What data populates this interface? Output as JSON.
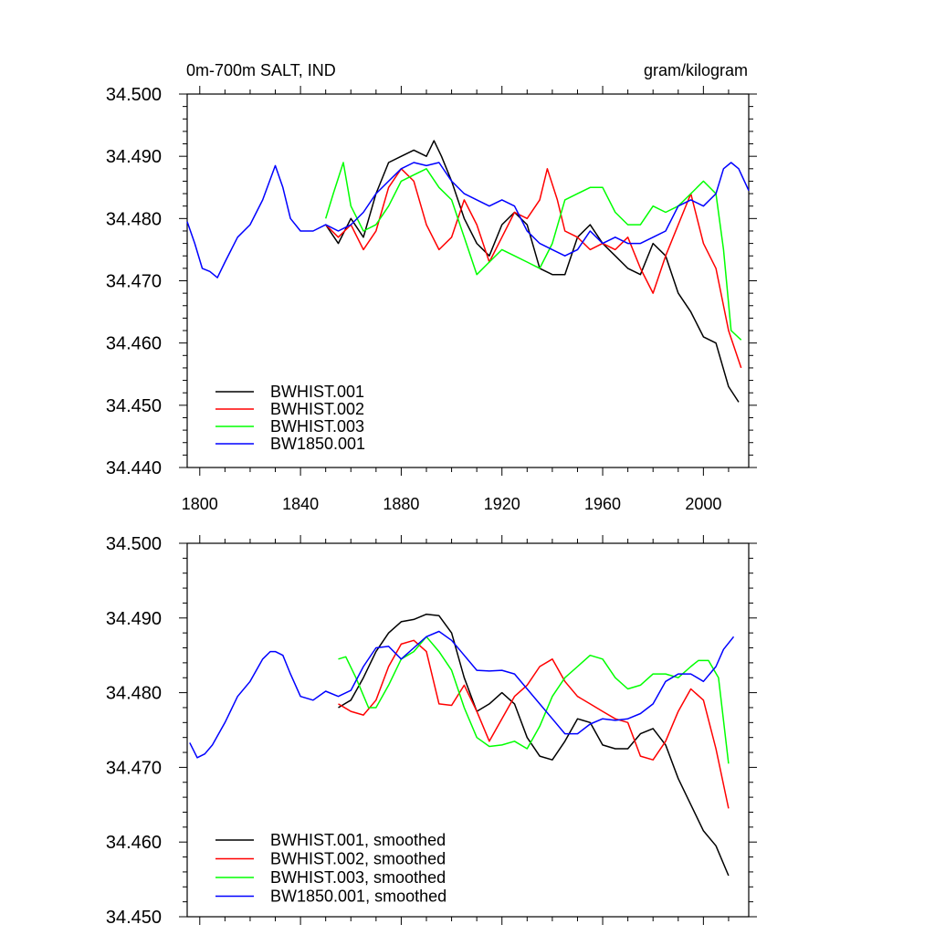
{
  "chart_data": [
    {
      "type": "line",
      "title_left": "0m-700m SALT, IND",
      "title_right": "gram/kilogram",
      "xlim": [
        1795,
        2018
      ],
      "ylim": [
        34.44,
        34.5
      ],
      "xticks": [
        1800,
        1840,
        1880,
        1920,
        1960,
        2000
      ],
      "yticks": [
        34.44,
        34.45,
        34.46,
        34.47,
        34.48,
        34.49,
        34.5
      ],
      "ytick_labels": [
        "34.440",
        "34.450",
        "34.460",
        "34.470",
        "34.480",
        "34.490",
        "34.500"
      ],
      "legend_position": "bottom-left",
      "series": [
        {
          "name": "BWHIST.001",
          "color": "#000000",
          "x": [
            1850,
            1855,
            1860,
            1865,
            1870,
            1875,
            1880,
            1885,
            1890,
            1893,
            1896,
            1900,
            1905,
            1910,
            1915,
            1920,
            1925,
            1930,
            1935,
            1940,
            1945,
            1950,
            1955,
            1960,
            1965,
            1970,
            1975,
            1980,
            1985,
            1990,
            1995,
            2000,
            2005,
            2010,
            2014
          ],
          "y": [
            34.479,
            34.476,
            34.48,
            34.477,
            34.484,
            34.489,
            34.49,
            34.491,
            34.49,
            34.4925,
            34.49,
            34.486,
            34.48,
            34.476,
            34.474,
            34.479,
            34.481,
            34.479,
            34.472,
            34.471,
            34.471,
            34.477,
            34.479,
            34.476,
            34.474,
            34.472,
            34.471,
            34.476,
            34.474,
            34.468,
            34.465,
            34.461,
            34.46,
            34.453,
            34.4505
          ]
        },
        {
          "name": "BWHIST.002",
          "color": "#ff0000",
          "x": [
            1850,
            1855,
            1860,
            1865,
            1870,
            1875,
            1880,
            1885,
            1890,
            1895,
            1900,
            1905,
            1910,
            1915,
            1920,
            1925,
            1930,
            1935,
            1938,
            1942,
            1945,
            1950,
            1955,
            1960,
            1965,
            1970,
            1975,
            1980,
            1985,
            1990,
            1995,
            2000,
            2005,
            2010,
            2015
          ],
          "y": [
            34.479,
            34.477,
            34.479,
            34.475,
            34.478,
            34.485,
            34.488,
            34.486,
            34.479,
            34.475,
            34.477,
            34.483,
            34.479,
            34.473,
            34.477,
            34.481,
            34.48,
            34.483,
            34.488,
            34.483,
            34.478,
            34.477,
            34.475,
            34.476,
            34.475,
            34.477,
            34.472,
            34.468,
            34.474,
            34.479,
            34.484,
            34.476,
            34.472,
            34.462,
            34.456
          ]
        },
        {
          "name": "BWHIST.003",
          "color": "#00ff00",
          "x": [
            1850,
            1853,
            1857,
            1860,
            1865,
            1870,
            1875,
            1880,
            1885,
            1890,
            1895,
            1900,
            1905,
            1910,
            1915,
            1920,
            1925,
            1930,
            1935,
            1940,
            1945,
            1950,
            1955,
            1960,
            1965,
            1970,
            1975,
            1980,
            1985,
            1990,
            1995,
            2000,
            2005,
            2008,
            2011,
            2015
          ],
          "y": [
            34.48,
            34.484,
            34.489,
            34.482,
            34.478,
            34.479,
            34.482,
            34.486,
            34.487,
            34.488,
            34.485,
            34.483,
            34.477,
            34.471,
            34.473,
            34.475,
            34.474,
            34.473,
            34.472,
            34.476,
            34.483,
            34.484,
            34.485,
            34.485,
            34.481,
            34.479,
            34.479,
            34.482,
            34.481,
            34.482,
            34.484,
            34.486,
            34.484,
            34.475,
            34.462,
            34.4605
          ]
        },
        {
          "name": "BW1850.001",
          "color": "#0000ff",
          "x": [
            1795,
            1798,
            1801,
            1804,
            1807,
            1810,
            1815,
            1820,
            1825,
            1830,
            1833,
            1836,
            1840,
            1845,
            1850,
            1855,
            1860,
            1865,
            1870,
            1875,
            1880,
            1885,
            1890,
            1895,
            1900,
            1905,
            1910,
            1915,
            1920,
            1925,
            1930,
            1935,
            1940,
            1945,
            1950,
            1955,
            1960,
            1965,
            1970,
            1975,
            1980,
            1985,
            1990,
            1995,
            2000,
            2005,
            2008,
            2011,
            2014,
            2018
          ],
          "y": [
            34.4795,
            34.476,
            34.472,
            34.4715,
            34.4705,
            34.473,
            34.477,
            34.479,
            34.483,
            34.4885,
            34.485,
            34.48,
            34.478,
            34.478,
            34.479,
            34.478,
            34.479,
            34.481,
            34.484,
            34.486,
            34.488,
            34.489,
            34.4885,
            34.489,
            34.486,
            34.484,
            34.483,
            34.482,
            34.483,
            34.482,
            34.478,
            34.476,
            34.475,
            34.474,
            34.475,
            34.478,
            34.476,
            34.477,
            34.476,
            34.476,
            34.477,
            34.478,
            34.482,
            34.483,
            34.482,
            34.484,
            34.488,
            34.489,
            34.488,
            34.4845
          ]
        }
      ]
    },
    {
      "type": "line",
      "xlim": [
        1795,
        2018
      ],
      "ylim": [
        34.45,
        34.5
      ],
      "xticks": [
        1800,
        1840,
        1880,
        1920,
        1960,
        2000
      ],
      "yticks": [
        34.45,
        34.46,
        34.47,
        34.48,
        34.49,
        34.5
      ],
      "ytick_labels": [
        "34.450",
        "34.460",
        "34.470",
        "34.480",
        "34.490",
        "34.500"
      ],
      "legend_position": "bottom-left",
      "series": [
        {
          "name": "BWHIST.001, smoothed",
          "color": "#000000",
          "x": [
            1855,
            1860,
            1865,
            1870,
            1875,
            1880,
            1885,
            1890,
            1895,
            1900,
            1905,
            1910,
            1915,
            1920,
            1925,
            1930,
            1935,
            1940,
            1945,
            1950,
            1955,
            1960,
            1965,
            1970,
            1975,
            1980,
            1985,
            1990,
            1995,
            2000,
            2005,
            2010
          ],
          "y": [
            34.478,
            34.479,
            34.482,
            34.4855,
            34.488,
            34.4895,
            34.4898,
            34.4905,
            34.4903,
            34.488,
            34.482,
            34.4775,
            34.4785,
            34.48,
            34.4785,
            34.474,
            34.4715,
            34.471,
            34.4735,
            34.4765,
            34.476,
            34.473,
            34.4725,
            34.4725,
            34.4745,
            34.4752,
            34.473,
            34.4685,
            34.465,
            34.4615,
            34.4595,
            34.4555
          ]
        },
        {
          "name": "BWHIST.002, smoothed",
          "color": "#ff0000",
          "x": [
            1855,
            1860,
            1865,
            1870,
            1875,
            1880,
            1885,
            1890,
            1895,
            1900,
            1905,
            1910,
            1915,
            1920,
            1925,
            1930,
            1935,
            1940,
            1945,
            1950,
            1955,
            1960,
            1965,
            1970,
            1975,
            1980,
            1985,
            1990,
            1995,
            2000,
            2005,
            2010
          ],
          "y": [
            34.4785,
            34.4775,
            34.477,
            34.479,
            34.4835,
            34.4865,
            34.487,
            34.4855,
            34.4785,
            34.4783,
            34.481,
            34.4775,
            34.4735,
            34.4765,
            34.4795,
            34.481,
            34.4835,
            34.4845,
            34.4815,
            34.4795,
            34.4785,
            34.4775,
            34.4765,
            34.476,
            34.4715,
            34.471,
            34.4735,
            34.4775,
            34.4805,
            34.479,
            34.4725,
            34.4645
          ]
        },
        {
          "name": "BWHIST.003, smoothed",
          "color": "#00ff00",
          "x": [
            1855,
            1858,
            1862,
            1867,
            1870,
            1875,
            1880,
            1885,
            1890,
            1895,
            1900,
            1905,
            1910,
            1915,
            1920,
            1925,
            1930,
            1935,
            1940,
            1945,
            1950,
            1955,
            1960,
            1965,
            1970,
            1975,
            1980,
            1985,
            1990,
            1995,
            1998,
            2002,
            2006,
            2010
          ],
          "y": [
            34.4845,
            34.4848,
            34.482,
            34.478,
            34.478,
            34.481,
            34.4845,
            34.4855,
            34.4875,
            34.4855,
            34.483,
            34.478,
            34.474,
            34.4728,
            34.473,
            34.4735,
            34.4725,
            34.4755,
            34.4795,
            34.482,
            34.4835,
            34.485,
            34.4845,
            34.482,
            34.4805,
            34.481,
            34.4825,
            34.4825,
            34.482,
            34.4835,
            34.4843,
            34.4843,
            34.482,
            34.4705
          ]
        },
        {
          "name": "BW1850.001, smoothed",
          "color": "#0000ff",
          "x": [
            1796,
            1799,
            1802,
            1805,
            1810,
            1815,
            1820,
            1825,
            1828,
            1830,
            1833,
            1836,
            1840,
            1845,
            1850,
            1855,
            1860,
            1865,
            1870,
            1875,
            1880,
            1885,
            1890,
            1895,
            1900,
            1905,
            1910,
            1915,
            1920,
            1925,
            1930,
            1935,
            1940,
            1945,
            1950,
            1955,
            1960,
            1965,
            1970,
            1975,
            1980,
            1985,
            1990,
            1995,
            2000,
            2005,
            2008,
            2012
          ],
          "y": [
            34.4733,
            34.4713,
            34.4718,
            34.473,
            34.476,
            34.4795,
            34.4815,
            34.4845,
            34.4855,
            34.4855,
            34.485,
            34.4825,
            34.4795,
            34.479,
            34.4802,
            34.4795,
            34.4803,
            34.4835,
            34.486,
            34.4862,
            34.4845,
            34.486,
            34.4875,
            34.4882,
            34.487,
            34.485,
            34.483,
            34.4829,
            34.483,
            34.4825,
            34.4805,
            34.4785,
            34.4765,
            34.4745,
            34.4745,
            34.4758,
            34.4765,
            34.4763,
            34.4765,
            34.4772,
            34.4785,
            34.4815,
            34.4825,
            34.4825,
            34.4815,
            34.4835,
            34.4858,
            34.4875
          ]
        }
      ]
    }
  ]
}
